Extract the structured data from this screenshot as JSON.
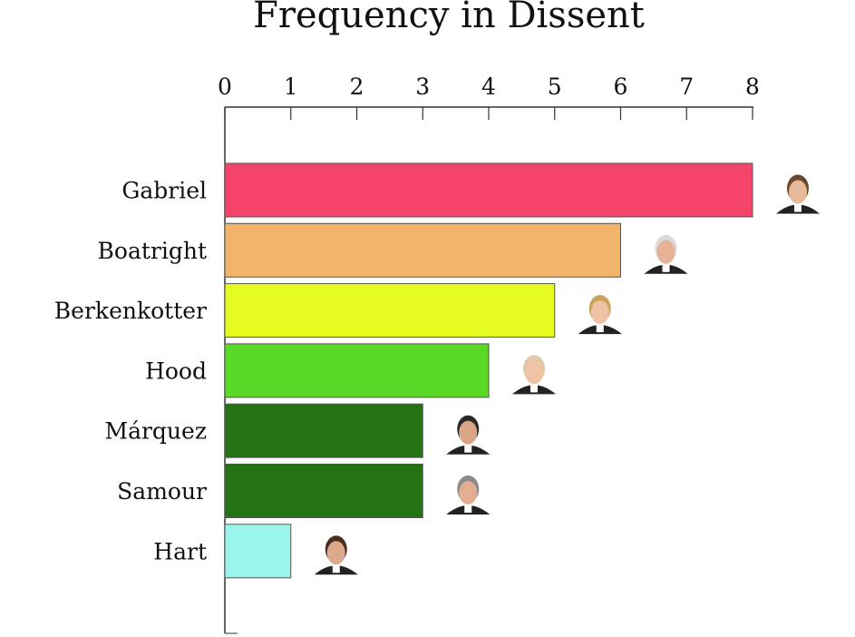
{
  "chart_data": {
    "type": "bar",
    "orientation": "horizontal",
    "title": "Frequency in Dissent",
    "categories": [
      "Gabriel",
      "Boatright",
      "Berkenkotter",
      "Hood",
      "Márquez",
      "Samour",
      "Hart"
    ],
    "values": [
      8,
      6,
      5,
      4,
      3,
      3,
      1
    ],
    "bar_colors": [
      "#f4446a",
      "#f2b46a",
      "#e6fb1f",
      "#5ad826",
      "#237214",
      "#237214",
      "#9af5ec"
    ],
    "xlim": [
      0,
      8
    ],
    "x_ticks": [
      "0",
      "1",
      "2",
      "3",
      "4",
      "5",
      "6",
      "7",
      "8"
    ],
    "x_axis_position": "top",
    "grid": false,
    "legend": "none",
    "annotations": "portrait photo of each person next to the end of their bar"
  }
}
